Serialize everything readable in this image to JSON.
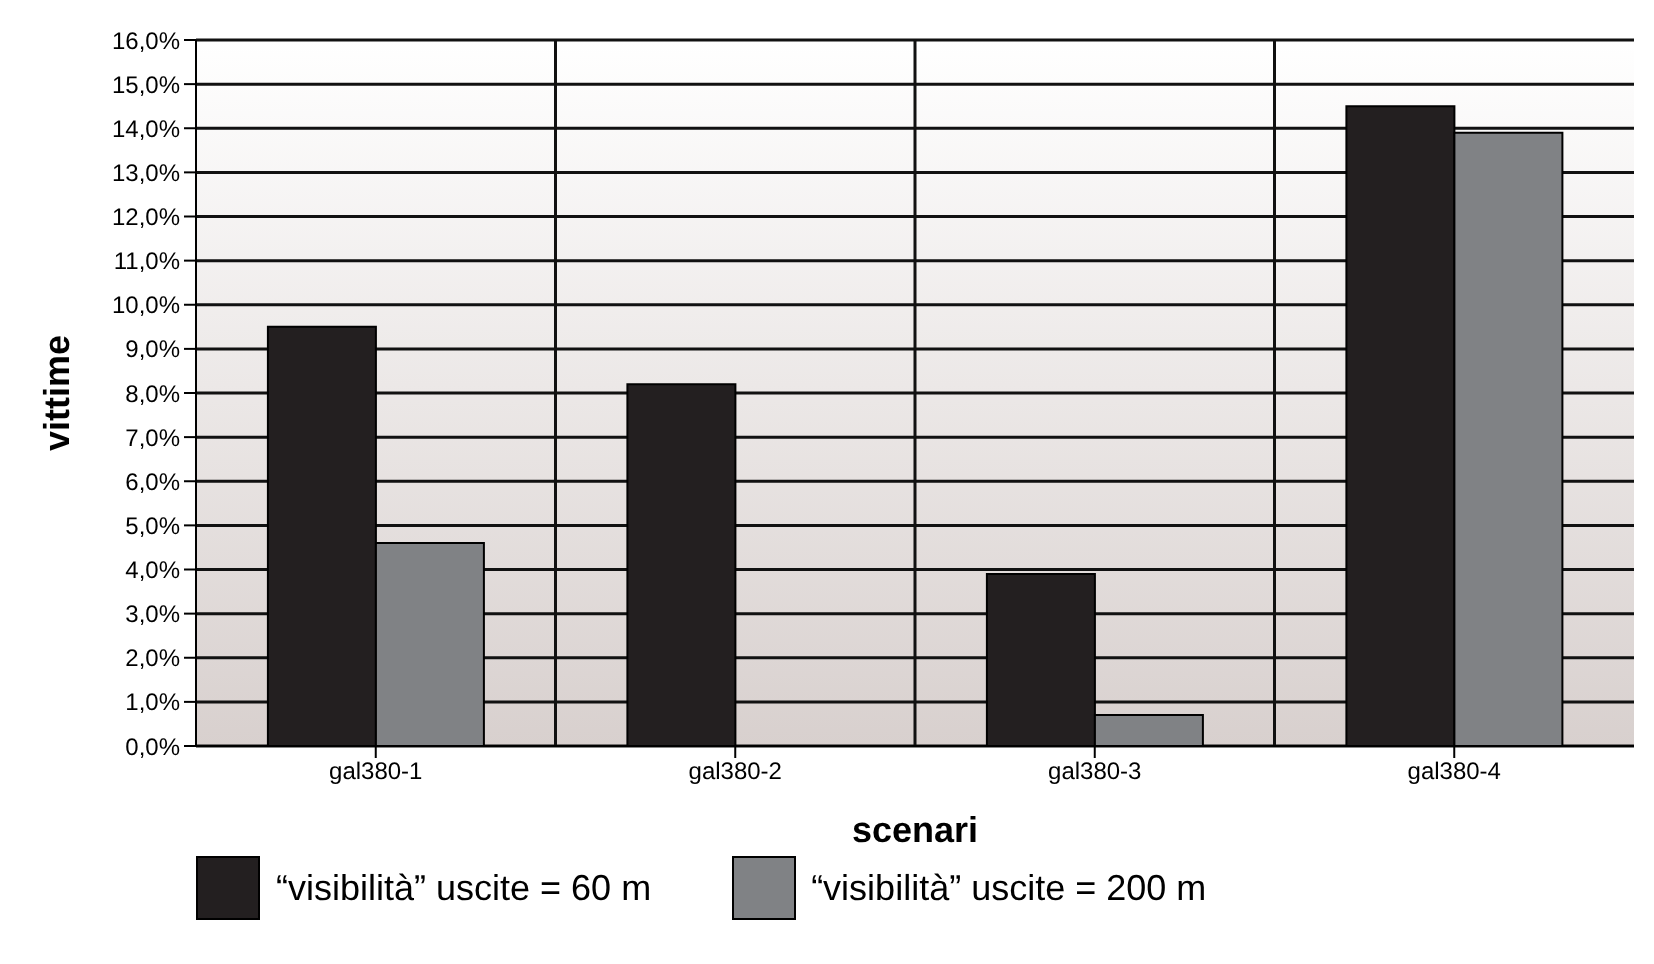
{
  "chart_data": {
    "type": "bar",
    "xlabel": "scenari",
    "ylabel": "vittime",
    "categories": [
      "gal380-1",
      "gal380-2",
      "gal380-3",
      "gal380-4"
    ],
    "series": [
      {
        "name": "“visibilità” uscite = 60 m",
        "color": "#231f20",
        "values": [
          9.5,
          8.2,
          3.9,
          14.5
        ]
      },
      {
        "name": "“visibilità” uscite = 200 m",
        "color": "#808285",
        "values": [
          4.6,
          0,
          0.7,
          13.9
        ]
      }
    ],
    "ylim": [
      0,
      16
    ],
    "yticks": [
      {
        "value": 0,
        "label": "0,0%"
      },
      {
        "value": 1,
        "label": "1,0%"
      },
      {
        "value": 2,
        "label": "2,0%"
      },
      {
        "value": 3,
        "label": "3,0%"
      },
      {
        "value": 4,
        "label": "4,0%"
      },
      {
        "value": 5,
        "label": "5,0%"
      },
      {
        "value": 6,
        "label": "6,0%"
      },
      {
        "value": 7,
        "label": "7,0%"
      },
      {
        "value": 8,
        "label": "8,0%"
      },
      {
        "value": 9,
        "label": "9,0%"
      },
      {
        "value": 10,
        "label": "10,0%"
      },
      {
        "value": 11,
        "label": "11,0%"
      },
      {
        "value": 12,
        "label": "12,0%"
      },
      {
        "value": 13,
        "label": "13,0%"
      },
      {
        "value": 14,
        "label": "14,0%"
      },
      {
        "value": 15,
        "label": "15,0%"
      },
      {
        "value": 16,
        "label": "16,0%"
      }
    ],
    "grid": true,
    "legend": "bottom"
  }
}
